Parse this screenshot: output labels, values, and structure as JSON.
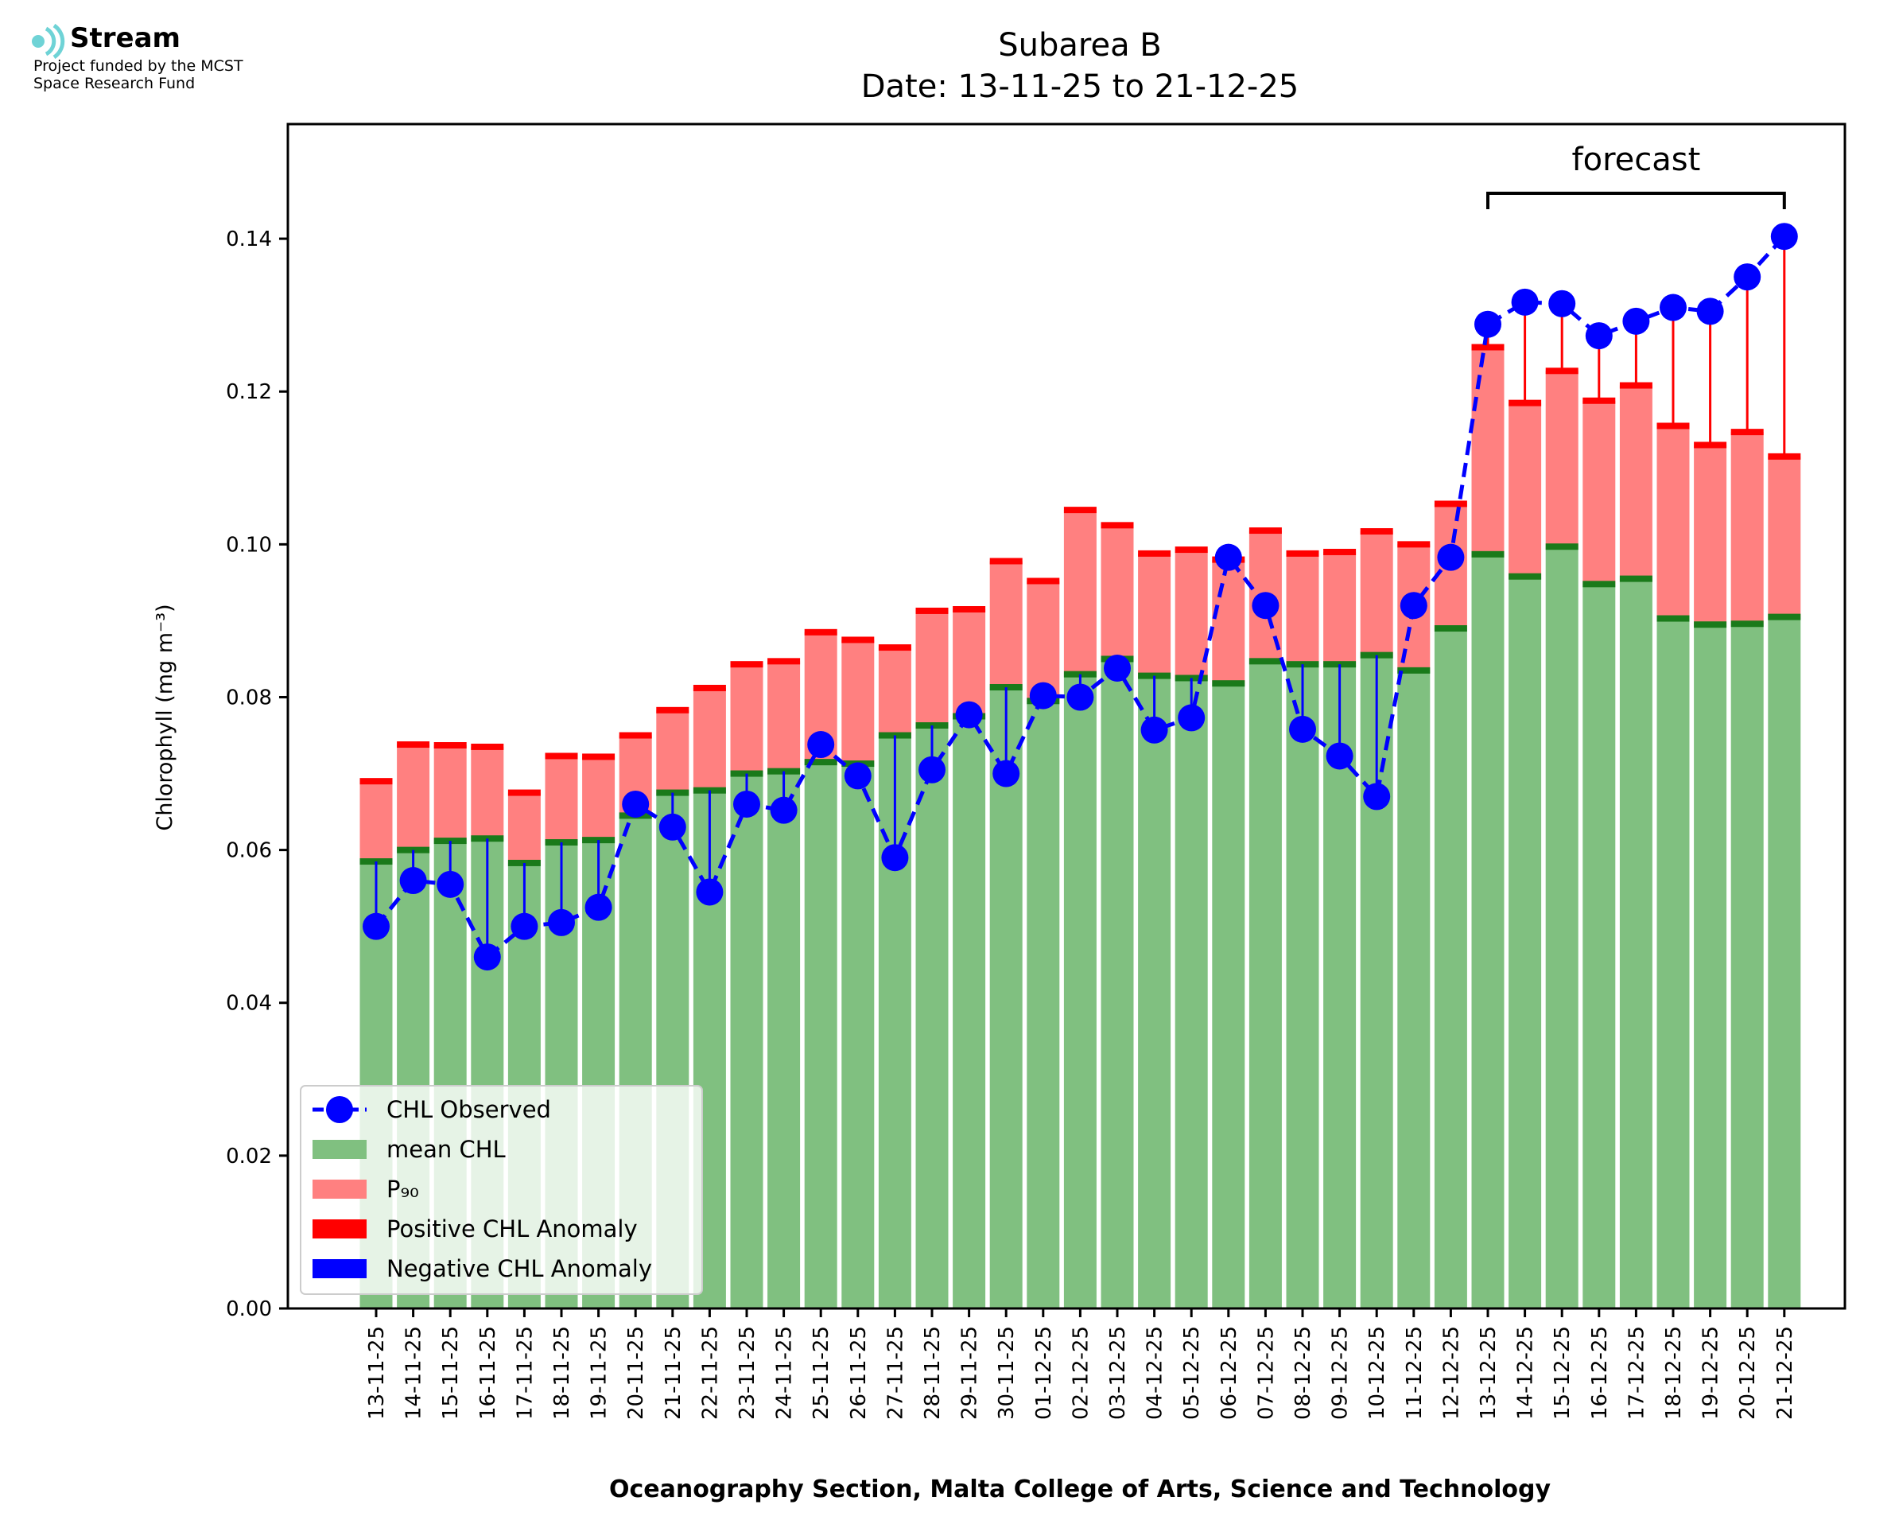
{
  "logo": {
    "brand": "Stream",
    "subtitle_line1": "Project funded by the MCST",
    "subtitle_line2": "Space Research Fund",
    "icon": "stream-wave-icon",
    "icon_color": "#6fd3d6"
  },
  "chart_data": {
    "type": "bar",
    "title": "Subarea B",
    "subtitle": "Date: 13-11-25 to 21-12-25",
    "xlabel": "Oceanography Section, Malta College of Arts, Science and Technology",
    "ylabel": "Chlorophyll (mg m⁻³)",
    "ylim": [
      0,
      0.155
    ],
    "yticks": [
      "0.00",
      "0.02",
      "0.04",
      "0.06",
      "0.08",
      "0.10",
      "0.12",
      "0.14"
    ],
    "ytick_values": [
      0,
      0.02,
      0.04,
      0.06,
      0.08,
      0.1,
      0.12,
      0.14
    ],
    "grid": false,
    "legend_position": "lower-left",
    "forecast_label": "forecast",
    "forecast_start": "13-12-25",
    "forecast_end": "21-12-25",
    "categories": [
      "13-11-25",
      "14-11-25",
      "15-11-25",
      "16-11-25",
      "17-11-25",
      "18-11-25",
      "19-11-25",
      "20-11-25",
      "21-11-25",
      "22-11-25",
      "23-11-25",
      "24-11-25",
      "25-11-25",
      "26-11-25",
      "27-11-25",
      "28-11-25",
      "29-11-25",
      "30-11-25",
      "01-12-25",
      "02-12-25",
      "03-12-25",
      "04-12-25",
      "05-12-25",
      "06-12-25",
      "07-12-25",
      "08-12-25",
      "09-12-25",
      "10-12-25",
      "11-12-25",
      "12-12-25",
      "13-12-25",
      "14-12-25",
      "15-12-25",
      "16-12-25",
      "17-12-25",
      "18-12-25",
      "19-12-25",
      "20-12-25",
      "21-12-25"
    ],
    "series": [
      {
        "name": "CHL Observed",
        "type": "line",
        "color": "#0000ff",
        "values": [
          0.05,
          0.056,
          0.0555,
          0.046,
          0.05,
          0.0505,
          0.0525,
          0.066,
          0.063,
          0.0545,
          0.066,
          0.0652,
          0.0738,
          0.0697,
          0.059,
          0.0705,
          0.0777,
          0.07,
          0.0802,
          0.08,
          0.0838,
          0.0757,
          0.0773,
          0.0983,
          0.092,
          0.0758,
          0.0723,
          0.067,
          0.092,
          0.0983,
          0.1288,
          0.1317,
          0.1315,
          0.1273,
          0.1292,
          0.131,
          0.1305,
          0.135,
          0.1403
        ]
      },
      {
        "name": "mean CHL",
        "type": "bar",
        "color": "#80c080",
        "values": [
          0.0585,
          0.06,
          0.0612,
          0.0615,
          0.0583,
          0.061,
          0.0613,
          0.0645,
          0.0675,
          0.0678,
          0.07,
          0.0703,
          0.0715,
          0.0713,
          0.075,
          0.0763,
          0.0775,
          0.0813,
          0.0795,
          0.083,
          0.085,
          0.0828,
          0.0825,
          0.0818,
          0.0847,
          0.0843,
          0.0843,
          0.0855,
          0.0835,
          0.089,
          0.0987,
          0.0958,
          0.0997,
          0.0948,
          0.0955,
          0.0903,
          0.0895,
          0.0896,
          0.0905
        ]
      },
      {
        "name": "P₉₀",
        "type": "bar",
        "color": "#ff8080",
        "values": [
          0.069,
          0.0738,
          0.0737,
          0.0735,
          0.0675,
          0.0723,
          0.0722,
          0.075,
          0.0783,
          0.0812,
          0.0843,
          0.0847,
          0.0885,
          0.0875,
          0.0865,
          0.0913,
          0.0915,
          0.0978,
          0.0952,
          0.1045,
          0.1025,
          0.0988,
          0.0993,
          0.098,
          0.1018,
          0.0988,
          0.099,
          0.1017,
          0.1,
          0.1053,
          0.1258,
          0.1185,
          0.1227,
          0.1188,
          0.1208,
          0.1155,
          0.113,
          0.1147,
          0.1115
        ]
      },
      {
        "name": "Positive CHL Anomaly",
        "type": "anomaly",
        "color": "#ff0000"
      },
      {
        "name": "Negative CHL Anomaly",
        "type": "anomaly",
        "color": "#0000ff"
      }
    ]
  }
}
